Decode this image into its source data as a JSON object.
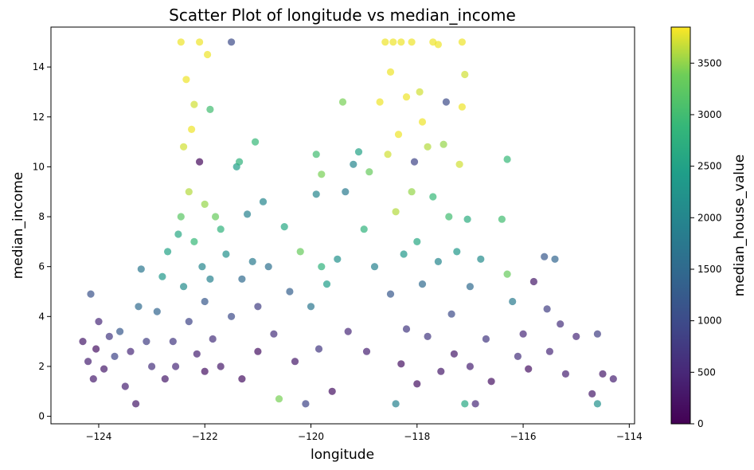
{
  "chart_data": {
    "type": "scatter",
    "title": "Scatter Plot of longitude vs median_income",
    "xlabel": "longitude",
    "ylabel": "median_income",
    "xlim": [
      -124.9,
      -113.9
    ],
    "ylim": [
      -0.3,
      15.6
    ],
    "xticks": [
      -124,
      -122,
      -120,
      -118,
      -116,
      -114
    ],
    "yticks": [
      0,
      2,
      4,
      6,
      8,
      10,
      12,
      14
    ],
    "grid": false,
    "colorbar": {
      "label": "median_house_value",
      "range": [
        0,
        3850
      ],
      "ticks": [
        0,
        500,
        1000,
        1500,
        2000,
        2500,
        3000,
        3500
      ],
      "colormap": "viridis"
    },
    "marker_alpha": 0.7,
    "series": [
      {
        "points": [
          [
            -124.3,
            3.0,
            300
          ],
          [
            -124.2,
            2.2,
            400
          ],
          [
            -124.1,
            1.5,
            350
          ],
          [
            -124.0,
            3.8,
            500
          ],
          [
            -124.15,
            4.9,
            1100
          ],
          [
            -124.05,
            2.7,
            200
          ],
          [
            -123.9,
            1.9,
            300
          ],
          [
            -123.8,
            3.2,
            700
          ],
          [
            -123.7,
            2.4,
            900
          ],
          [
            -123.6,
            3.4,
            1200
          ],
          [
            -123.5,
            1.2,
            400
          ],
          [
            -123.4,
            2.6,
            500
          ],
          [
            -123.3,
            0.5,
            300
          ],
          [
            -123.25,
            4.4,
            1500
          ],
          [
            -123.2,
            5.9,
            1700
          ],
          [
            -123.1,
            3.0,
            800
          ],
          [
            -123.0,
            2.0,
            600
          ],
          [
            -122.9,
            4.2,
            1400
          ],
          [
            -122.8,
            5.6,
            2300
          ],
          [
            -122.75,
            1.5,
            300
          ],
          [
            -122.7,
            6.6,
            2500
          ],
          [
            -122.6,
            3.0,
            700
          ],
          [
            -122.55,
            2.0,
            500
          ],
          [
            -122.5,
            7.3,
            2600
          ],
          [
            -122.45,
            8.0,
            3200
          ],
          [
            -122.45,
            15.0,
            3800
          ],
          [
            -122.4,
            10.8,
            3700
          ],
          [
            -122.4,
            5.2,
            2100
          ],
          [
            -122.35,
            13.5,
            3800
          ],
          [
            -122.3,
            9.0,
            3600
          ],
          [
            -122.3,
            3.8,
            900
          ],
          [
            -122.25,
            11.5,
            3800
          ],
          [
            -122.2,
            12.5,
            3700
          ],
          [
            -122.2,
            7.0,
            2900
          ],
          [
            -122.15,
            2.5,
            400
          ],
          [
            -122.1,
            15.0,
            3800
          ],
          [
            -122.1,
            10.2,
            100
          ],
          [
            -122.05,
            6.0,
            2000
          ],
          [
            -122.0,
            8.5,
            3500
          ],
          [
            -122.0,
            4.6,
            1200
          ],
          [
            -122.0,
            1.8,
            200
          ],
          [
            -121.95,
            14.5,
            3800
          ],
          [
            -121.9,
            12.3,
            3000
          ],
          [
            -121.9,
            5.5,
            1900
          ],
          [
            -121.85,
            3.1,
            600
          ],
          [
            -121.8,
            8.0,
            3300
          ],
          [
            -121.7,
            7.5,
            2800
          ],
          [
            -121.7,
            2.0,
            300
          ],
          [
            -121.6,
            6.5,
            2200
          ],
          [
            -121.5,
            15.0,
            1000
          ],
          [
            -121.5,
            4.0,
            1000
          ],
          [
            -121.4,
            10.0,
            2400
          ],
          [
            -121.35,
            10.2,
            2800
          ],
          [
            -121.3,
            5.5,
            1500
          ],
          [
            -121.3,
            1.5,
            200
          ],
          [
            -121.2,
            8.1,
            1900
          ],
          [
            -121.1,
            6.2,
            1800
          ],
          [
            -121.05,
            11.0,
            2900
          ],
          [
            -121.0,
            4.4,
            800
          ],
          [
            -121.0,
            2.6,
            200
          ],
          [
            -120.9,
            8.6,
            2000
          ],
          [
            -120.8,
            6.0,
            1600
          ],
          [
            -120.7,
            3.3,
            600
          ],
          [
            -120.6,
            0.7,
            3400
          ],
          [
            -120.5,
            7.6,
            2600
          ],
          [
            -120.4,
            5.0,
            1300
          ],
          [
            -120.3,
            2.2,
            300
          ],
          [
            -120.2,
            6.6,
            3300
          ],
          [
            -120.1,
            0.5,
            900
          ],
          [
            -120.0,
            4.4,
            1700
          ],
          [
            -119.9,
            10.5,
            3000
          ],
          [
            -119.9,
            8.9,
            2000
          ],
          [
            -119.85,
            2.7,
            700
          ],
          [
            -119.8,
            9.7,
            3400
          ],
          [
            -119.8,
            6.0,
            2800
          ],
          [
            -119.7,
            5.3,
            2400
          ],
          [
            -119.6,
            1.0,
            200
          ],
          [
            -119.5,
            6.3,
            2200
          ],
          [
            -119.4,
            12.6,
            3400
          ],
          [
            -119.35,
            9.0,
            1800
          ],
          [
            -119.3,
            3.4,
            500
          ],
          [
            -119.2,
            10.1,
            2000
          ],
          [
            -119.1,
            10.6,
            2500
          ],
          [
            -119.0,
            7.5,
            2800
          ],
          [
            -118.95,
            2.6,
            400
          ],
          [
            -118.9,
            9.8,
            3300
          ],
          [
            -118.8,
            6.0,
            1900
          ],
          [
            -118.7,
            12.6,
            3800
          ],
          [
            -118.6,
            15.0,
            3800
          ],
          [
            -118.55,
            10.5,
            3700
          ],
          [
            -118.5,
            13.8,
            3800
          ],
          [
            -118.5,
            4.9,
            1200
          ],
          [
            -118.45,
            15.0,
            3800
          ],
          [
            -118.4,
            8.2,
            3600
          ],
          [
            -118.4,
            0.5,
            1900
          ],
          [
            -118.35,
            11.3,
            3800
          ],
          [
            -118.3,
            15.0,
            3800
          ],
          [
            -118.3,
            2.1,
            200
          ],
          [
            -118.25,
            6.5,
            2300
          ],
          [
            -118.2,
            12.8,
            3800
          ],
          [
            -118.2,
            3.5,
            700
          ],
          [
            -118.1,
            15.0,
            3800
          ],
          [
            -118.1,
            9.0,
            3500
          ],
          [
            -118.05,
            10.2,
            900
          ],
          [
            -118.0,
            7.0,
            2600
          ],
          [
            -118.0,
            1.3,
            200
          ],
          [
            -117.95,
            13.0,
            3700
          ],
          [
            -117.9,
            11.8,
            3800
          ],
          [
            -117.9,
            5.3,
            1500
          ],
          [
            -117.8,
            10.8,
            3600
          ],
          [
            -117.8,
            3.2,
            700
          ],
          [
            -117.7,
            15.0,
            3800
          ],
          [
            -117.7,
            8.8,
            2900
          ],
          [
            -117.6,
            14.9,
            3800
          ],
          [
            -117.6,
            6.2,
            2000
          ],
          [
            -117.55,
            1.8,
            300
          ],
          [
            -117.5,
            10.9,
            3500
          ],
          [
            -117.45,
            12.6,
            1000
          ],
          [
            -117.4,
            8.0,
            3000
          ],
          [
            -117.35,
            4.1,
            1000
          ],
          [
            -117.3,
            2.5,
            300
          ],
          [
            -117.25,
            6.6,
            2300
          ],
          [
            -117.2,
            10.1,
            3700
          ],
          [
            -117.15,
            15.0,
            3800
          ],
          [
            -117.15,
            12.4,
            3800
          ],
          [
            -117.1,
            13.7,
            3700
          ],
          [
            -117.1,
            0.5,
            2600
          ],
          [
            -117.05,
            7.9,
            2700
          ],
          [
            -117.0,
            5.2,
            1500
          ],
          [
            -117.0,
            2.0,
            400
          ],
          [
            -116.9,
            0.5,
            500
          ],
          [
            -116.8,
            6.3,
            2100
          ],
          [
            -116.7,
            3.1,
            700
          ],
          [
            -116.6,
            1.4,
            200
          ],
          [
            -116.4,
            7.9,
            3000
          ],
          [
            -116.3,
            10.3,
            2900
          ],
          [
            -116.3,
            5.7,
            3300
          ],
          [
            -116.2,
            4.6,
            1800
          ],
          [
            -116.1,
            2.4,
            600
          ],
          [
            -116.0,
            3.3,
            500
          ],
          [
            -115.9,
            1.9,
            200
          ],
          [
            -115.8,
            5.4,
            300
          ],
          [
            -115.6,
            6.4,
            1200
          ],
          [
            -115.55,
            4.3,
            800
          ],
          [
            -115.5,
            2.6,
            500
          ],
          [
            -115.4,
            6.3,
            1400
          ],
          [
            -115.3,
            3.7,
            600
          ],
          [
            -115.2,
            1.7,
            400
          ],
          [
            -115.0,
            3.2,
            500
          ],
          [
            -114.7,
            0.9,
            300
          ],
          [
            -114.6,
            3.3,
            800
          ],
          [
            -114.6,
            0.5,
            2200
          ],
          [
            -114.5,
            1.7,
            300
          ],
          [
            -114.3,
            1.5,
            400
          ]
        ]
      }
    ]
  }
}
